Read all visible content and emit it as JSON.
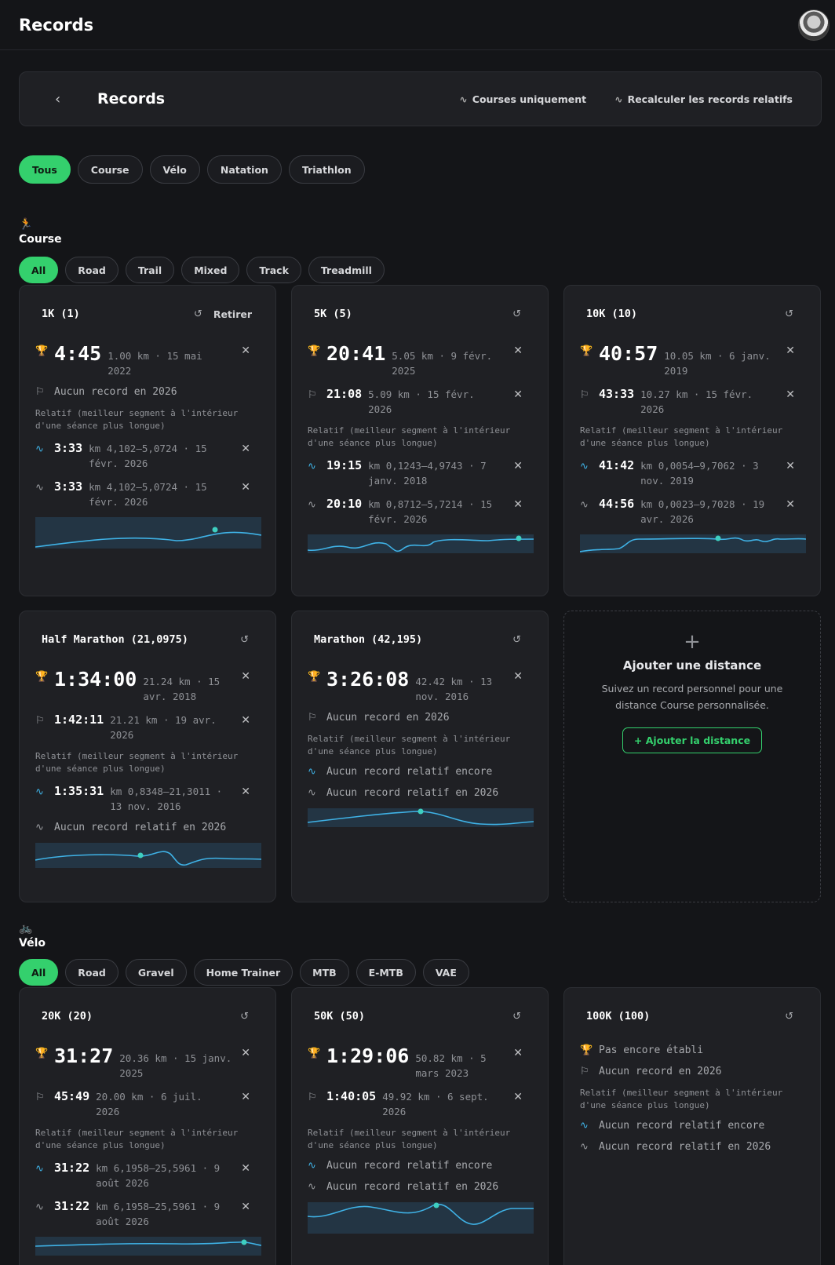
{
  "app": {
    "title": "Records"
  },
  "header": {
    "back": "‹",
    "title": "Records",
    "action_runs": "Courses uniquement",
    "action_recalc": "Recalculer les records relatifs"
  },
  "sports": [
    "Tous",
    "Course",
    "Vélo",
    "Natation",
    "Triathlon"
  ],
  "relative_note": "Relatif (meilleur segment à l'intérieur d'une séance plus longue)",
  "course": {
    "title": "Course",
    "filters": [
      "All",
      "Road",
      "Trail",
      "Mixed",
      "Track",
      "Treadmill"
    ],
    "cards": [
      {
        "title": "1K (1)",
        "retirer": "Retirer",
        "best": {
          "value": "4:45",
          "meta": "1.00 km · 15 mai 2022"
        },
        "year": {
          "empty": "Aucun record en 2026"
        },
        "rel_best": {
          "value": "3:33",
          "meta": "km 4,102–5,0724 · 15 févr. 2026"
        },
        "rel_year": {
          "value": "3:33",
          "meta": "km 4,102–5,0724 · 15 févr. 2026"
        }
      },
      {
        "title": "5K (5)",
        "best": {
          "value": "20:41",
          "meta": "5.05 km · 9 févr. 2025"
        },
        "year": {
          "value": "21:08",
          "meta": "5.09 km · 15 févr. 2026"
        },
        "rel_best": {
          "value": "19:15",
          "meta": "km 0,1243–4,9743 · 7 janv. 2018"
        },
        "rel_year": {
          "value": "20:10",
          "meta": "km 0,8712–5,7214 · 15 févr. 2026"
        }
      },
      {
        "title": "10K (10)",
        "best": {
          "value": "40:57",
          "meta": "10.05 km · 6 janv. 2019"
        },
        "year": {
          "value": "43:33",
          "meta": "10.27 km · 15 févr. 2026"
        },
        "rel_best": {
          "value": "41:42",
          "meta": "km 0,0054–9,7062 · 3 nov. 2019"
        },
        "rel_year": {
          "value": "44:56",
          "meta": "km 0,0023–9,7028 · 19 avr. 2026"
        }
      },
      {
        "title": "Half Marathon (21,0975)",
        "best": {
          "value": "1:34:00",
          "meta": "21.24 km · 15 avr. 2018"
        },
        "year": {
          "value": "1:42:11",
          "meta": "21.21 km · 19 avr. 2026"
        },
        "rel_best": {
          "value": "1:35:31",
          "meta": "km 0,8348–21,3011 · 13 nov. 2016"
        },
        "rel_year": {
          "empty": "Aucun record relatif en 2026"
        }
      },
      {
        "title": "Marathon (42,195)",
        "best": {
          "value": "3:26:08",
          "meta": "42.42 km · 13 nov. 2016"
        },
        "year": {
          "empty": "Aucun record en 2026"
        },
        "rel_best": {
          "empty": "Aucun record relatif encore"
        },
        "rel_year": {
          "empty": "Aucun record relatif en 2026"
        }
      }
    ],
    "add": {
      "plus": "+",
      "title": "Ajouter une distance",
      "desc": "Suivez un record personnel pour une distance Course personnalisée.",
      "button": "+ Ajouter la distance"
    }
  },
  "velo": {
    "title": "Vélo",
    "filters": [
      "All",
      "Road",
      "Gravel",
      "Home Trainer",
      "MTB",
      "E-MTB",
      "VAE"
    ],
    "cards": [
      {
        "title": "20K (20)",
        "best": {
          "value": "31:27",
          "meta": "20.36 km · 15 janv. 2025"
        },
        "year": {
          "value": "45:49",
          "meta": "20.00 km · 6 juil. 2026"
        },
        "rel_best": {
          "value": "31:22",
          "meta": "km 6,1958–25,5961 · 9 août 2026"
        },
        "rel_year": {
          "value": "31:22",
          "meta": "km 6,1958–25,5961 · 9 août 2026"
        }
      },
      {
        "title": "50K (50)",
        "best": {
          "value": "1:29:06",
          "meta": "50.82 km · 5 mars 2023"
        },
        "year": {
          "value": "1:40:05",
          "meta": "49.92 km · 6 sept. 2026"
        },
        "rel_best": {
          "empty": "Aucun record relatif encore"
        },
        "rel_year": {
          "empty": "Aucun record relatif en 2026"
        }
      },
      {
        "title": "100K (100)",
        "best": {
          "empty": "Pas encore établi"
        },
        "year": {
          "empty": "Aucun record en 2026"
        },
        "rel_best": {
          "empty": "Aucun record relatif encore"
        },
        "rel_year": {
          "empty": "Aucun record relatif en 2026"
        }
      }
    ]
  },
  "colors": {
    "accent": "#34d06d",
    "trophy": "#e68a2e",
    "relative": "#3fb2e6",
    "card_bg": "#1f2024"
  }
}
